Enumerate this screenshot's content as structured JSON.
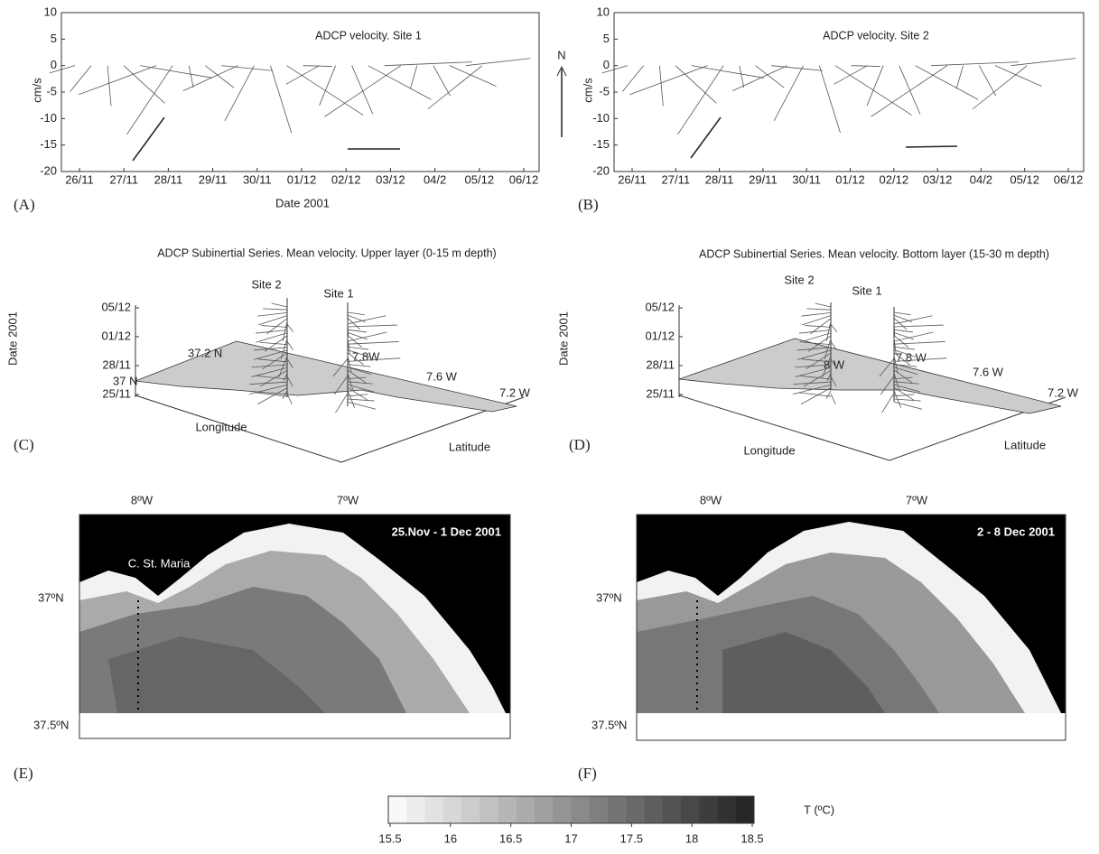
{
  "panels": {
    "A": {
      "label": "(A)",
      "title": "ADCP velocity. Site 1",
      "ylabel": "cm/s",
      "xlabel": "Date 2001",
      "yticks": [
        10,
        5,
        0,
        -5,
        -10,
        -15,
        -20
      ],
      "xticks": [
        "26/11",
        "27/11",
        "28/11",
        "29/11",
        "30/11",
        "01/12",
        "02/12",
        "03/12",
        "04/2",
        "05/12",
        "06/12"
      ]
    },
    "B": {
      "label": "(B)",
      "title": "ADCP velocity. Site 2",
      "ylabel": "cm/s",
      "north": "N",
      "yticks": [
        10,
        5,
        0,
        -5,
        -10,
        -15,
        -20
      ],
      "xticks": [
        "26/11",
        "27/11",
        "28/11",
        "29/11",
        "30/11",
        "01/12",
        "02/12",
        "03/12",
        "04/2",
        "05/12",
        "06/12"
      ]
    },
    "C": {
      "label": "(C)",
      "title": "ADCP Subinertial Series. Mean velocity. Upper layer (0-15 m depth)",
      "zlabel": "Date 2001",
      "zticks": [
        "05/12",
        "01/12",
        "28/11",
        "25/11"
      ],
      "sites": [
        "Site 2",
        "Site 1"
      ],
      "coords": [
        "37 N",
        "37.2 N",
        "7.8W",
        "7.6 W",
        "7.2 W"
      ],
      "xlabel": "Longitude",
      "ylabel": "Latitude"
    },
    "D": {
      "label": "(D)",
      "title": "ADCP Subinertial Series. Mean velocity. Bottom layer (15-30 m depth)",
      "zlabel": "Date 2001",
      "zticks": [
        "05/12",
        "01/12",
        "28/11",
        "25/11"
      ],
      "sites": [
        "Site 2",
        "Site 1"
      ],
      "coords": [
        "8 W",
        "7.8 W",
        "7.6 W",
        "7.2 W"
      ],
      "xlabel": "Longitude",
      "ylabel": "Latitude"
    },
    "E": {
      "label": "(E)",
      "lon": [
        "8ºW",
        "7ºW"
      ],
      "lat": [
        "37ºN",
        "37.5ºN"
      ],
      "period": "25.Nov - 1 Dec 2001",
      "place": "C. St. Maria"
    },
    "F": {
      "label": "(F)",
      "lon": [
        "8ºW",
        "7ºW"
      ],
      "lat": [
        "37ºN",
        "37.5ºN"
      ],
      "period": "2 - 8 Dec 2001"
    }
  },
  "colorbar": {
    "ticks": [
      15.5,
      16,
      16.5,
      17,
      17.5,
      18,
      18.5
    ],
    "label": "T (ºC)"
  }
}
